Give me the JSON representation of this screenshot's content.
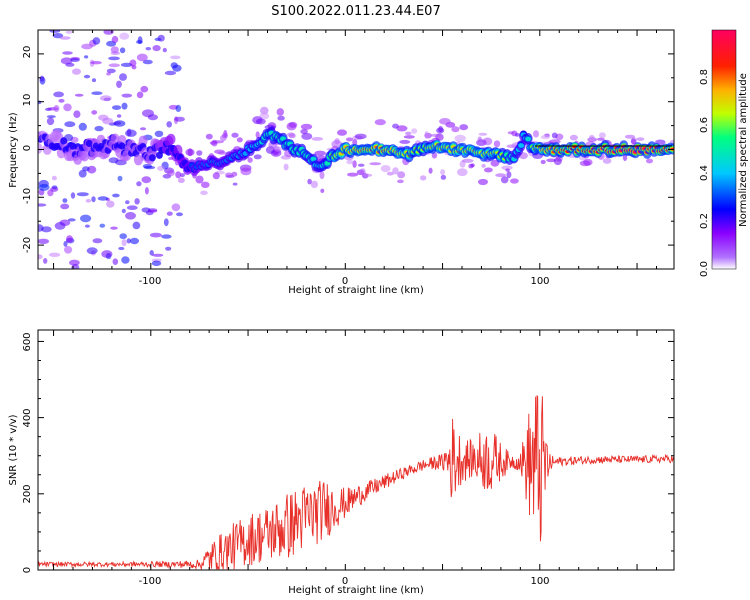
{
  "title": "S100.2022.011.23.44.E07",
  "chart_data": [
    {
      "type": "heatmap",
      "title": "S100.2022.011.23.44.E07",
      "xlabel": "Height of straight line (km)",
      "ylabel": "Frequency (Hz)",
      "xlim": [
        -158,
        169
      ],
      "ylim": [
        -25,
        25
      ],
      "x_ticks": [
        "-100",
        "0",
        "100"
      ],
      "y_ticks": [
        "-20",
        "-10",
        "0",
        "10",
        "20"
      ],
      "colorbar": {
        "label": "Normalized spectral amplitude",
        "range": [
          0,
          1
        ],
        "ticks": [
          "0.0",
          "0.2",
          "0.4",
          "0.6",
          "0.8"
        ],
        "colormap": [
          "#ffffff",
          "#8a00ff",
          "#0000ff",
          "#00c8ff",
          "#00ff80",
          "#c0ff00",
          "#ffb000",
          "#ff0000",
          "#ff0060"
        ]
      },
      "ridge": {
        "x": [
          -158,
          -140,
          -120,
          -100,
          -90,
          -85,
          -80,
          -70,
          -60,
          -50,
          -45,
          -40,
          -35,
          -30,
          -25,
          -20,
          -15,
          -12,
          -8,
          -5,
          0,
          10,
          20,
          30,
          40,
          45,
          50,
          60,
          70,
          80,
          85,
          88,
          92,
          95,
          100,
          110,
          120,
          140,
          150,
          169
        ],
        "freq": [
          2,
          0,
          1,
          -1,
          1,
          -2,
          -4,
          -3,
          -2,
          0,
          1,
          3,
          3,
          1,
          0,
          -1,
          -3,
          -4,
          -2,
          -1,
          0,
          0,
          0,
          -1,
          0,
          1,
          0,
          0,
          -1,
          -1,
          -2,
          -1,
          3,
          1,
          0,
          0,
          0,
          0,
          0,
          0
        ],
        "strength": [
          0.15,
          0.2,
          0.2,
          0.2,
          0.3,
          0.3,
          0.35,
          0.4,
          0.4,
          0.45,
          0.5,
          0.55,
          0.55,
          0.55,
          0.55,
          0.55,
          0.5,
          0.5,
          0.6,
          0.65,
          0.75,
          0.8,
          0.8,
          0.7,
          0.6,
          0.7,
          0.7,
          0.7,
          0.7,
          0.65,
          0.55,
          0.5,
          0.45,
          0.55,
          0.75,
          0.85,
          0.9,
          0.95,
          1.0,
          0.85
        ]
      }
    },
    {
      "type": "line",
      "xlabel": "Height of straight line (km)",
      "ylabel": "SNR (10 * v/v)",
      "xlim": [
        -158,
        169
      ],
      "ylim": [
        0,
        630
      ],
      "x_ticks": [
        "-100",
        "0",
        "100"
      ],
      "y_ticks": [
        "0",
        "200",
        "400",
        "600"
      ],
      "color": "#e8302a",
      "envelope": {
        "x": [
          -158,
          -120,
          -90,
          -75,
          -70,
          -60,
          -50,
          -40,
          -30,
          -20,
          -10,
          0,
          10,
          20,
          30,
          40,
          50,
          55,
          60,
          65,
          70,
          75,
          80,
          85,
          90,
          95,
          100,
          105,
          110,
          130,
          150,
          169
        ],
        "mean": [
          15,
          15,
          15,
          15,
          30,
          55,
          80,
          95,
          115,
          140,
          160,
          175,
          205,
          230,
          255,
          275,
          285,
          290,
          290,
          290,
          290,
          288,
          285,
          285,
          285,
          280,
          270,
          280,
          285,
          290,
          290,
          292
        ],
        "amplitude": [
          6,
          6,
          8,
          12,
          40,
          60,
          70,
          75,
          90,
          90,
          80,
          40,
          25,
          20,
          15,
          15,
          20,
          120,
          60,
          50,
          80,
          90,
          50,
          20,
          25,
          160,
          250,
          25,
          12,
          10,
          10,
          10
        ]
      }
    }
  ]
}
